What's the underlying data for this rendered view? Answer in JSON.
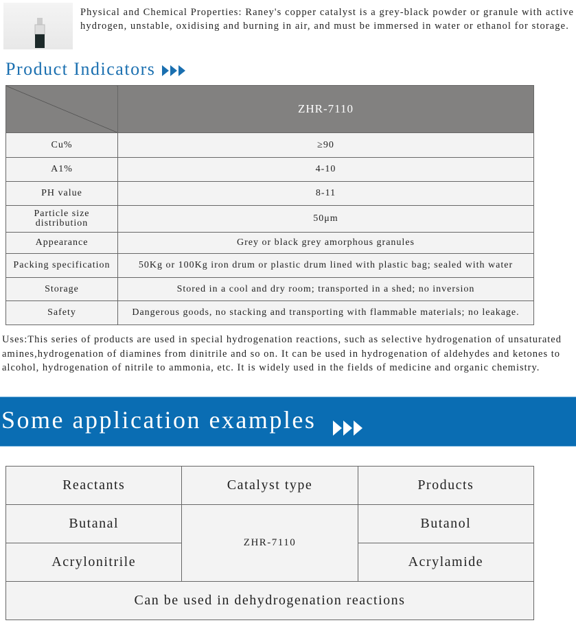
{
  "properties": "Physical and Chemical Properties: Raney's copper catalyst is a grey-black powder or granule with active hydrogen, unstable, oxidising and burning in air, and must be immersed in water or  ethanol for storage.",
  "indicators_title": "Product Indicators",
  "indicators_table": {
    "header": "ZHR-7110",
    "rows": [
      {
        "label": "Cu%",
        "value": "≥90"
      },
      {
        "label": "A1%",
        "value": "4-10"
      },
      {
        "label": "PH value",
        "value": "8-11"
      },
      {
        "label": "Particle size distribution",
        "value": "50μm"
      },
      {
        "label": "Appearance",
        "value": "Grey or black grey amorphous granules"
      },
      {
        "label": "Packing specification",
        "value": "50Kg or 100Kg iron drum or plastic drum lined with plastic bag; sealed with water"
      },
      {
        "label": "Storage",
        "value": "Stored in a cool and dry room; transported in a shed; no inversion"
      },
      {
        "label": "Safety",
        "value": "Dangerous goods, no stacking and transporting with flammable materials; no leakage."
      }
    ]
  },
  "uses": "Uses:This series of products are used in special hydrogenation reactions, such as selective hydrogenation of unsaturated amines,hydrogenation of diamines from dinitrile and so on. It can be used in hydrogenation of aldehydes and ketones to alcohol, hydrogenation of nitrile to ammonia, etc. It is widely used in the fields of medicine and organic chemistry.",
  "applications_title": "Some application examples",
  "applications_table": {
    "headers": [
      "Reactants",
      "Catalyst type",
      "Products"
    ],
    "catalyst": "ZHR-7110",
    "rows": [
      {
        "reactant": "Butanal",
        "product": "Butanol"
      },
      {
        "reactant": "Acrylonitrile",
        "product": "Acrylamide"
      }
    ],
    "footer": "Can be used in dehydrogenation reactions"
  },
  "colors": {
    "accent": "#1a6fb0",
    "banner": "#0a6db3",
    "header_gray": "#828180"
  }
}
